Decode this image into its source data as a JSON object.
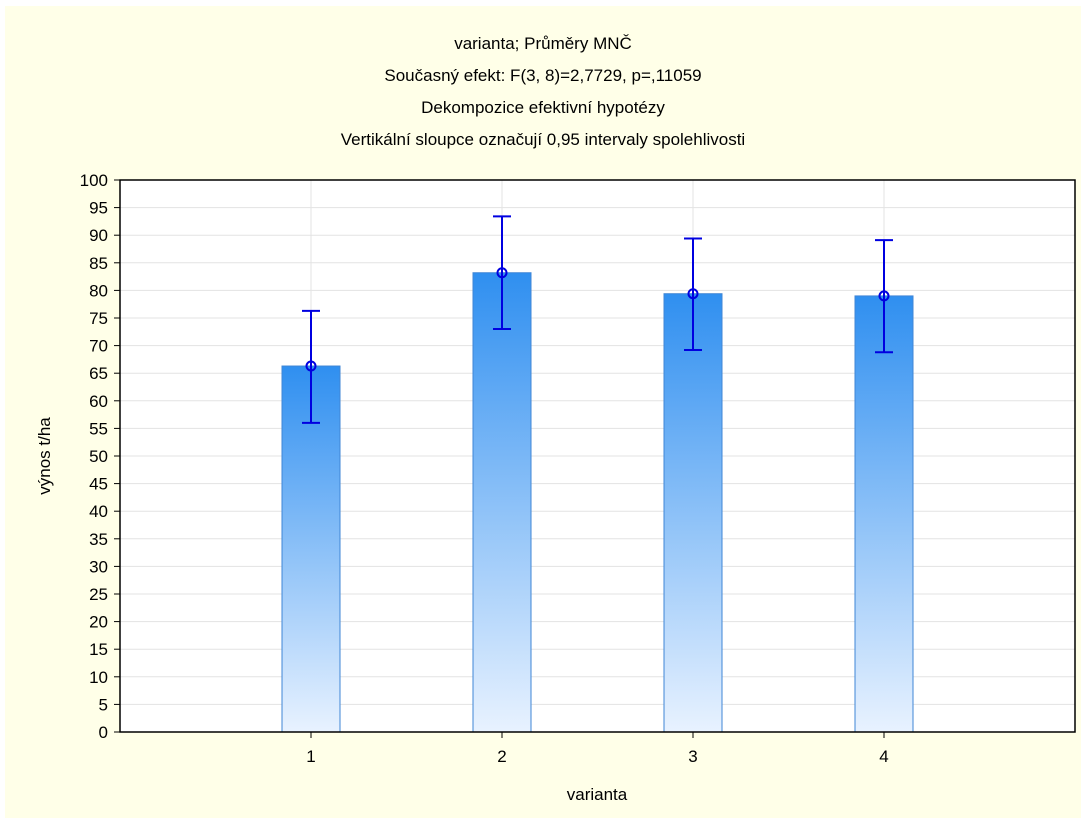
{
  "chart_data": {
    "type": "bar",
    "title_lines": [
      "varianta; Průměry MNČ",
      "Současný efekt: F(3, 8)=2,7729, p=,11059",
      "Dekompozice efektivní hypotézy",
      "Vertikální sloupce označují 0,95 intervaly spolehlivosti"
    ],
    "xlabel": "varianta",
    "ylabel": "výnos t/ha",
    "categories": [
      "1",
      "2",
      "3",
      "4"
    ],
    "values": [
      66.3,
      83.2,
      79.4,
      79.0
    ],
    "ci_lower": [
      56.0,
      73.0,
      69.2,
      68.8
    ],
    "ci_upper": [
      76.3,
      93.4,
      89.4,
      89.1
    ],
    "ylim": [
      0,
      100
    ],
    "yticks": [
      0,
      5,
      10,
      15,
      20,
      25,
      30,
      35,
      40,
      45,
      50,
      55,
      60,
      65,
      70,
      75,
      80,
      85,
      90,
      95,
      100
    ],
    "grid": true,
    "legend": false,
    "colors": {
      "page_background": "#ffffe8",
      "plot_background": "#ffffff",
      "bar_top": "#2f8ff0",
      "bar_bottom": "#e8f2ff",
      "bar_edge": "#3f86d6",
      "error_bar": "#0000e0",
      "gridline": "#e3e3e3",
      "axis": "#000000"
    }
  }
}
